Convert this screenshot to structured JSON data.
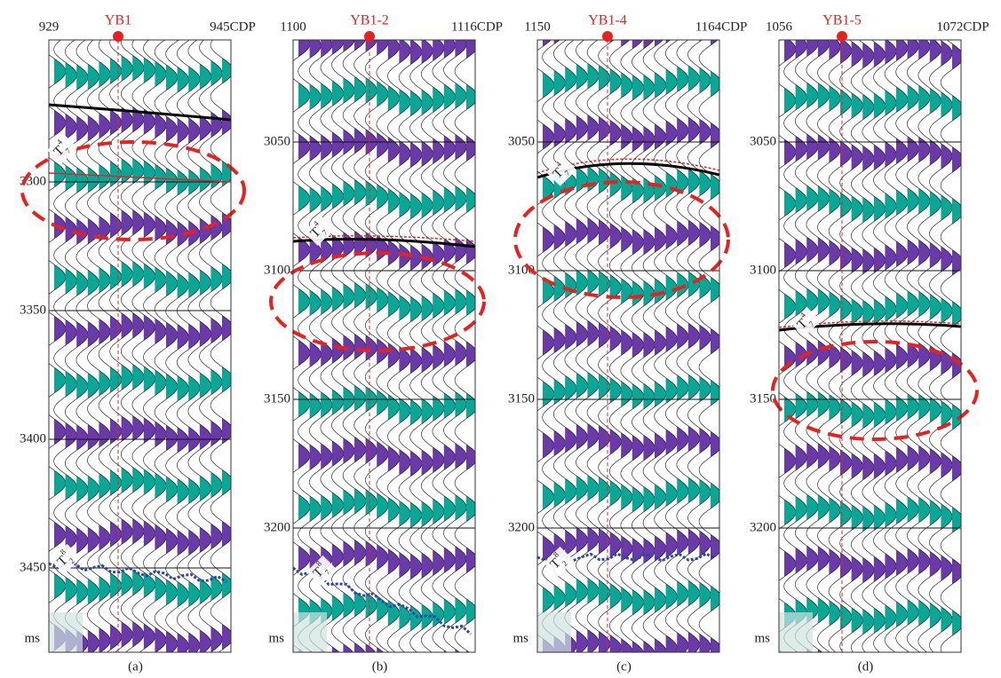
{
  "panels": [
    {
      "well": "YB1",
      "cdp_start": "929",
      "cdp_end": "945CDP",
      "time_ticks": [
        "3300",
        "3350",
        "3400",
        "3450"
      ],
      "time_unit": "ms",
      "horizons": [
        {
          "label": "T",
          "sup": "4",
          "sub": "7"
        },
        {
          "label": "T",
          "sup": "8",
          "sub": "2"
        }
      ],
      "caption": "(a)"
    },
    {
      "well": "YB1-2",
      "cdp_start": "1100",
      "cdp_end": "1116CDP",
      "time_ticks": [
        "3050",
        "3100",
        "3150",
        "3200"
      ],
      "time_unit": "ms",
      "horizons": [
        {
          "label": "T",
          "sup": "4",
          "sub": "7"
        },
        {
          "label": "T",
          "sup": "8",
          "sub": "7"
        }
      ],
      "caption": "(b)"
    },
    {
      "well": "YB1-4",
      "cdp_start": "1150",
      "cdp_end": "1164CDP",
      "time_ticks": [
        "3050",
        "3100",
        "3150",
        "3200"
      ],
      "time_unit": "ms",
      "horizons": [
        {
          "label": "T",
          "sup": "4",
          "sub": "7"
        },
        {
          "label": "T",
          "sup": "8",
          "sub": "2"
        }
      ],
      "caption": "(c)"
    },
    {
      "well": "YB1-5",
      "cdp_start": "1056",
      "cdp_end": "1072CDP",
      "time_ticks": [
        "3050",
        "3100",
        "3150",
        "3200"
      ],
      "time_unit": "ms",
      "horizons": [
        {
          "label": "T",
          "sup": "4",
          "sub": "7"
        }
      ],
      "caption": "(d)"
    }
  ]
}
